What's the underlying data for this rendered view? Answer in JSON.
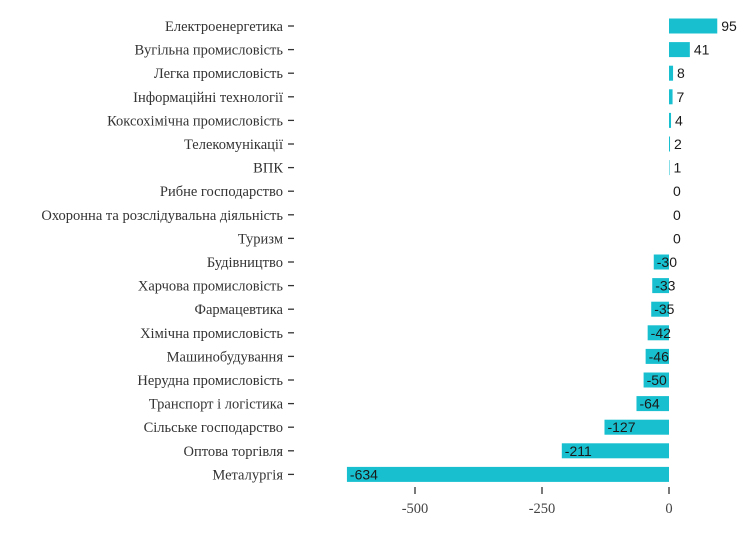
{
  "chart_data": {
    "type": "bar",
    "orientation": "horizontal",
    "title": "",
    "xlabel": "",
    "ylabel": "",
    "bar_color": "#17bfcf",
    "xlim": [
      -700,
      110
    ],
    "xticks": [
      -500,
      -250,
      0
    ],
    "xtick_labels": [
      "-500",
      "-250",
      "0"
    ],
    "grid": false,
    "categories": [
      "Електроенергетика",
      "Вугільна промисловість",
      "Легка промисловість",
      "Інформаційні технології",
      "Коксохімічна промисловість",
      "Телекомунікації",
      "ВПК",
      "Рибне господарство",
      "Охоронна та розслідувальна діяльність",
      "Туризм",
      "Будівництво",
      "Харчова промисловість",
      "Фармацевтика",
      "Хімічна промисловість",
      "Машинобудування",
      "Нерудна промисловість",
      "Транспорт і логістика",
      "Сільське господарство",
      "Оптова торгівля",
      "Металургія"
    ],
    "values": [
      95,
      41,
      8,
      7,
      4,
      2,
      1,
      0,
      0,
      0,
      -30,
      -33,
      -35,
      -42,
      -46,
      -50,
      -64,
      -127,
      -211,
      -634
    ],
    "value_labels": [
      "95",
      "41",
      "8",
      "7",
      "4",
      "2",
      "1",
      "0",
      "0",
      "0",
      "-30",
      "-33",
      "-35",
      "-42",
      "-46",
      "-50",
      "-64",
      "-127",
      "-211",
      "-634"
    ]
  }
}
